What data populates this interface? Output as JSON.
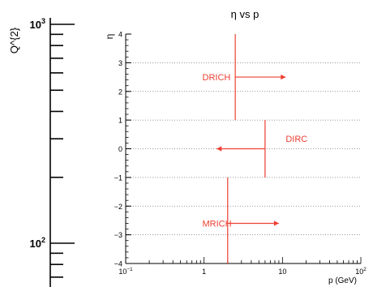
{
  "chart_data": [
    {
      "type": "axis",
      "title": "",
      "ylabel": "Q^{2}",
      "scale": "log",
      "ylim_visible": [
        60,
        1000
      ],
      "major_ticks": [
        {
          "value": 100,
          "base": "10",
          "exp": "2"
        },
        {
          "value": 1000,
          "base": "10",
          "exp": "3"
        }
      ],
      "minor_ticks": [
        60,
        70,
        80,
        90,
        200,
        300,
        400,
        500,
        600,
        700,
        800,
        900
      ]
    },
    {
      "type": "line",
      "title": "η vs p",
      "xlabel": "p (GeV)",
      "ylabel": "η",
      "xscale": "log",
      "xlim": [
        0.1,
        100
      ],
      "ylim": [
        -4,
        4
      ],
      "grid": "horizontal dotted",
      "x_ticks": [
        {
          "value": 0.1,
          "base": "10",
          "exp": "−1"
        },
        {
          "value": 1,
          "label": "1"
        },
        {
          "value": 10,
          "label": "10"
        },
        {
          "value": 100,
          "base": "10",
          "exp": "2"
        }
      ],
      "y_ticks": [
        {
          "value": -4,
          "label": "−4"
        },
        {
          "value": -3,
          "label": "−3"
        },
        {
          "value": -2,
          "label": "−2"
        },
        {
          "value": -1,
          "label": "−1"
        },
        {
          "value": 0,
          "label": "0"
        },
        {
          "value": 1,
          "label": "1"
        },
        {
          "value": 2,
          "label": "2"
        },
        {
          "value": 3,
          "label": "3"
        },
        {
          "value": 4,
          "label": "4"
        }
      ],
      "series_color": "#ee3e32",
      "detectors": [
        {
          "name": "DRICH",
          "p": 2.5,
          "eta_min": 1,
          "eta_max": 4,
          "arrow_from": 2.5,
          "arrow_to": 11,
          "arrow_eta": 2.5,
          "label_p": 0.95,
          "label_eta": 2.5
        },
        {
          "name": "DIRC",
          "p": 6,
          "eta_min": -1,
          "eta_max": 1,
          "arrow_from": 6,
          "arrow_to": 1.45,
          "arrow_eta": 0,
          "label_p": 11,
          "label_eta": 0.35
        },
        {
          "name": "MRICH",
          "p": 2,
          "eta_min": -4,
          "eta_max": -1,
          "arrow_from": 2,
          "arrow_to": 9,
          "arrow_eta": -2.6,
          "label_p": 0.95,
          "label_eta": -2.6
        }
      ]
    }
  ]
}
